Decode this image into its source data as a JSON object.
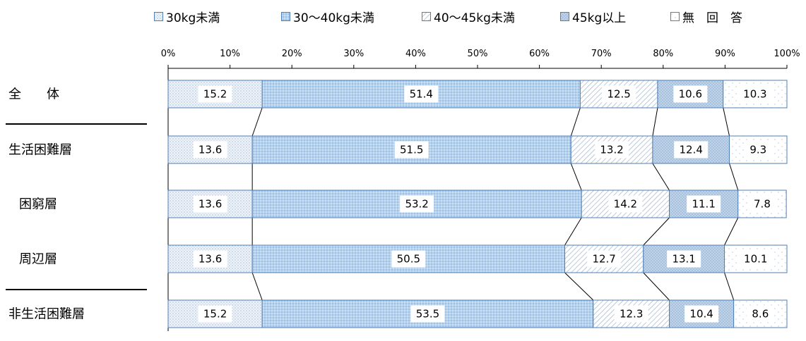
{
  "chart_data": {
    "type": "bar",
    "orientation": "horizontal-stacked-100",
    "legend_position": "top",
    "xlim": [
      0,
      100
    ],
    "tick_labels": [
      "0%",
      "10%",
      "20%",
      "30%",
      "40%",
      "50%",
      "60%",
      "70%",
      "80%",
      "90%",
      "100%"
    ],
    "categories": [
      {
        "label": "全　　体",
        "indent": false
      },
      {
        "label": "生活困難層",
        "indent": false
      },
      {
        "label": "困窮層",
        "indent": true
      },
      {
        "label": "周辺層",
        "indent": true
      },
      {
        "label": "非生活困難層",
        "indent": false
      }
    ],
    "series": [
      {
        "name": "30kg未満",
        "values": [
          15.2,
          13.6,
          13.6,
          13.6,
          15.2
        ],
        "color": "#e6eef7",
        "pattern": "dots-light"
      },
      {
        "name": "30～40kg未満",
        "values": [
          51.4,
          51.5,
          53.2,
          50.5,
          53.5
        ],
        "color": "#b7d5ef",
        "pattern": "dots-blue"
      },
      {
        "name": "40～45kg未満",
        "values": [
          12.5,
          13.2,
          14.2,
          12.7,
          12.3
        ],
        "color": "#ffffff",
        "pattern": "diagonal"
      },
      {
        "name": "45kg以上",
        "values": [
          10.6,
          12.4,
          11.1,
          13.1,
          10.4
        ],
        "color": "#c4d9ee",
        "pattern": "crosshatch"
      },
      {
        "name": "無　回　答",
        "values": [
          10.3,
          9.3,
          7.8,
          10.1,
          8.6
        ],
        "color": "#ffffff",
        "pattern": "sparse-dots"
      }
    ]
  }
}
